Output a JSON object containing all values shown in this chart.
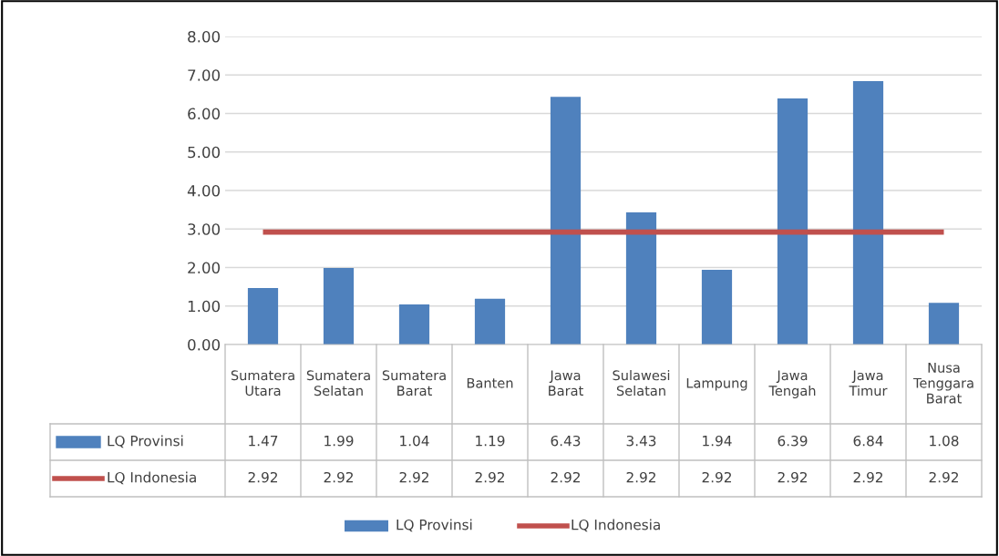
{
  "chart_data": {
    "type": "bar",
    "categories": [
      "Sumatera Utara",
      "Sumatera Selatan",
      "Sumatera Barat",
      "Banten",
      "Jawa Barat",
      "Sulawesi Selatan",
      "Lampung",
      "Jawa Tengah",
      "Jawa Timur",
      "Nusa Tenggara Barat"
    ],
    "series": [
      {
        "name": "LQ Provinsi",
        "color": "#4f81bd",
        "values": [
          1.47,
          1.99,
          1.04,
          1.19,
          6.43,
          3.43,
          1.94,
          6.39,
          6.84,
          1.08
        ]
      },
      {
        "name": "LQ Indonesia",
        "type": "line",
        "color": "#c0504d",
        "values": [
          2.92,
          2.92,
          2.92,
          2.92,
          2.92,
          2.92,
          2.92,
          2.92,
          2.92,
          2.92
        ]
      }
    ],
    "ylim": [
      0,
      8
    ],
    "yticks": [
      {
        "value": 0,
        "label": "0.00"
      },
      {
        "value": 1,
        "label": "1.00"
      },
      {
        "value": 2,
        "label": "2.00"
      },
      {
        "value": 3,
        "label": "3.00"
      },
      {
        "value": 4,
        "label": "4.00"
      },
      {
        "value": 5,
        "label": "5.00"
      },
      {
        "value": 6,
        "label": "6.00"
      },
      {
        "value": 7,
        "label": "7.00"
      },
      {
        "value": 8,
        "label": "8.00"
      }
    ],
    "grid": "y",
    "legend": "bottom",
    "data_labels": true
  }
}
